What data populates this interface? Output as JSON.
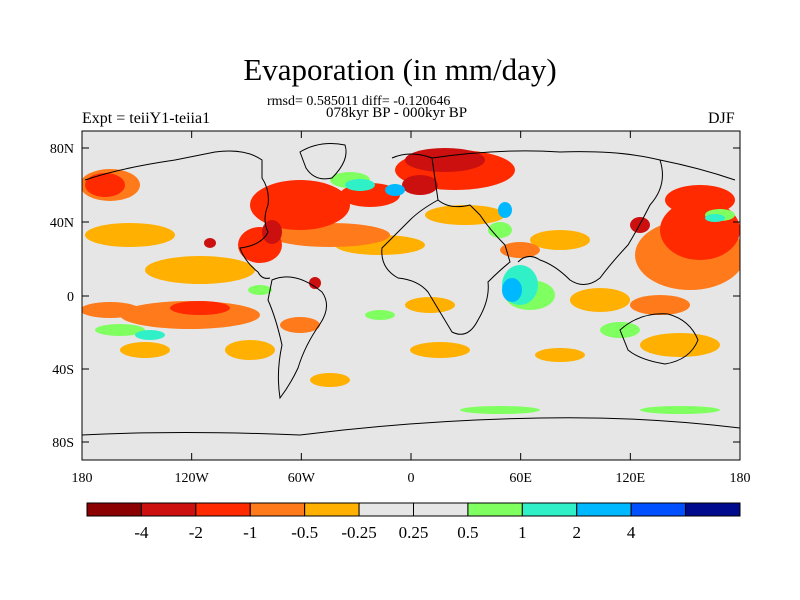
{
  "title": "Evaporation (in mm/day)",
  "stats_text": "rmsd= 0.585011 diff= -0.120646",
  "period_text": "078kyr BP - 000kyr BP",
  "experiment_text": "Expt = teiiY1-teiia1",
  "season_text": "DJF",
  "lat_ticks": [
    "80N",
    "40N",
    "0",
    "40S",
    "80S"
  ],
  "lon_ticks": [
    "180",
    "120W",
    "60W",
    "0",
    "60E",
    "120E",
    "180"
  ],
  "colorbar": {
    "colors": [
      "#8b0000",
      "#cc1010",
      "#ff2a00",
      "#ff7a1a",
      "#ffb000",
      "#e6e6e6",
      "#e6e6e6",
      "#80ff60",
      "#30f0c8",
      "#00b8ff",
      "#0050ff",
      "#000a8c"
    ],
    "labels": [
      "-4",
      "-2",
      "-1",
      "-0.5",
      "-0.25",
      "0.25",
      "0.5",
      "1",
      "2",
      "4"
    ]
  },
  "palette": {
    "neutral": "#e6e6e6",
    "strong_decrease": "#cc1010",
    "decrease": "#ff2a00",
    "moderate_decrease": "#ff7a1a",
    "slight_decrease": "#ffb000",
    "slight_increase": "#80ff60",
    "moderate_increase": "#30f0c8",
    "increase": "#00b8ff"
  }
}
